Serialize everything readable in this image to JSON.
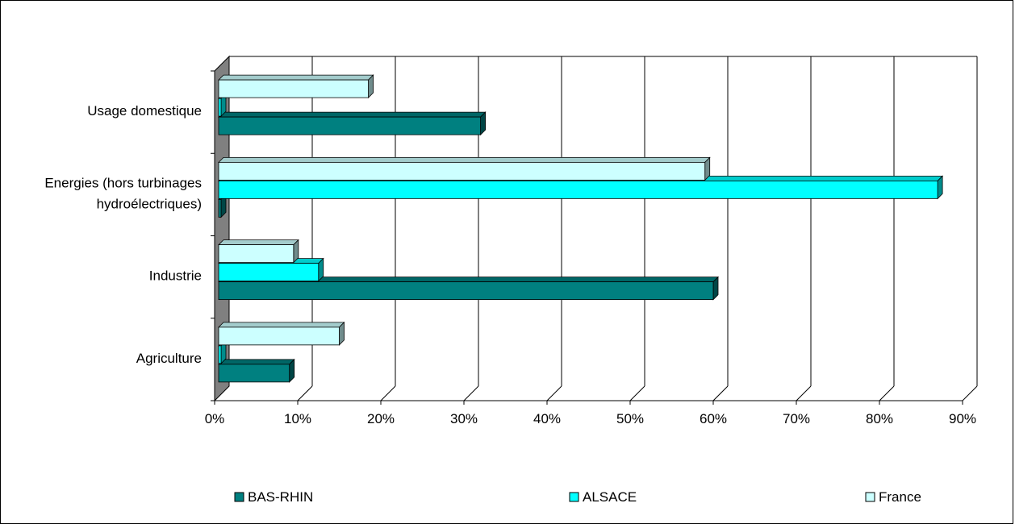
{
  "chart_data": {
    "type": "bar",
    "orientation": "horizontal",
    "categories": [
      [
        "Usage domestique"
      ],
      [
        "Energies (hors turbinages",
        "hydroélectriques)"
      ],
      [
        "Industrie"
      ],
      [
        "Agriculture"
      ]
    ],
    "series": [
      {
        "name": "BAS-RHIN",
        "color": "#008080",
        "values": [
          32,
          0.5,
          60,
          9
        ]
      },
      {
        "name": "ALSACE",
        "color": "#00FFFF",
        "values": [
          0.5,
          87,
          12.5,
          0.5
        ]
      },
      {
        "name": "France",
        "color": "#CCFFFF",
        "values": [
          18.5,
          59,
          9.5,
          15
        ]
      }
    ],
    "x_ticks": [
      "0%",
      "10%",
      "20%",
      "30%",
      "40%",
      "50%",
      "60%",
      "70%",
      "80%",
      "90%"
    ],
    "xlim": [
      0,
      90
    ],
    "grid": "vertical",
    "legend_position": "bottom",
    "style": "3d"
  }
}
